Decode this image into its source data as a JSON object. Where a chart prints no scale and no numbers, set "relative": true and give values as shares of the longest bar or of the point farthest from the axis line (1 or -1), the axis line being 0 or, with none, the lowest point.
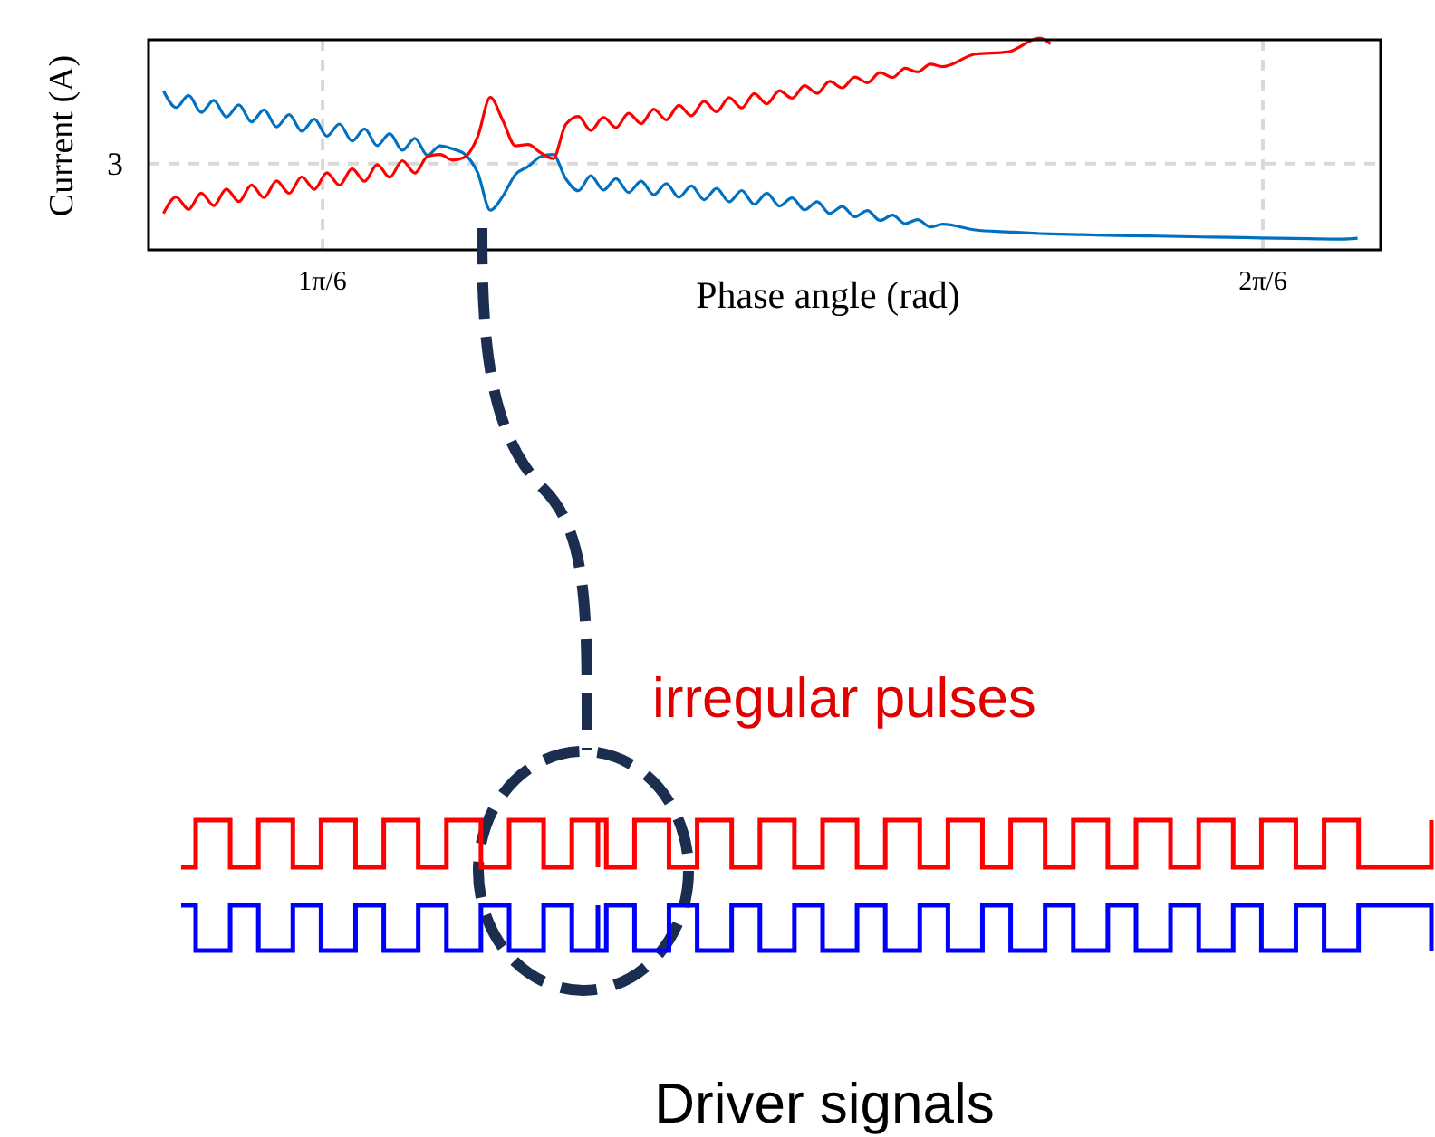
{
  "chart_data": {
    "type": "line",
    "xlabel": "Phase angle (rad)",
    "ylabel": "Current (A)",
    "relative": true,
    "x": [
      0.435,
      0.442,
      0.449,
      0.456,
      0.463,
      0.47,
      0.477,
      0.484,
      0.491,
      0.498,
      0.505,
      0.512,
      0.519,
      0.526,
      0.533,
      0.54,
      0.547,
      0.554,
      0.561,
      0.568,
      0.575,
      0.582,
      0.589,
      0.596,
      0.603,
      0.61,
      0.617,
      0.624,
      0.631,
      0.638,
      0.645,
      0.652,
      0.659,
      0.666,
      0.673,
      0.68,
      0.687,
      0.694,
      0.701,
      0.708,
      0.715,
      0.722,
      0.729,
      0.736,
      0.743,
      0.75,
      0.757,
      0.764,
      0.771,
      0.778,
      0.785,
      0.792,
      0.799,
      0.806,
      0.813,
      0.82,
      0.827,
      0.834,
      0.841,
      0.848,
      0.855,
      0.862,
      0.869,
      0.887,
      0.905,
      0.923,
      0.929,
      0.947,
      0.965,
      0.983,
      1.001,
      1.019,
      1.037,
      1.055,
      1.073,
      1.091,
      1.1
    ],
    "series": [
      {
        "color": "#0070c0",
        "values": [
          0.751,
          0.672,
          0.729,
          0.649,
          0.706,
          0.627,
          0.684,
          0.604,
          0.661,
          0.581,
          0.638,
          0.56,
          0.617,
          0.537,
          0.594,
          0.514,
          0.571,
          0.492,
          0.549,
          0.47,
          0.526,
          0.447,
          0.491,
          0.477,
          0.45,
          0.364,
          0.187,
          0.254,
          0.356,
          0.393,
          0.44,
          0.45,
          0.336,
          0.279,
          0.35,
          0.282,
          0.336,
          0.271,
          0.324,
          0.26,
          0.313,
          0.248,
          0.302,
          0.237,
          0.29,
          0.227,
          0.28,
          0.215,
          0.268,
          0.207,
          0.245,
          0.189,
          0.227,
          0.172,
          0.205,
          0.156,
          0.185,
          0.139,
          0.164,
          0.124,
          0.143,
          0.108,
          0.121,
          0.094,
          0.085,
          0.077,
          0.075,
          0.072,
          0.068,
          0.066,
          0.063,
          0.06,
          0.058,
          0.055,
          0.053,
          0.051,
          0.055
        ]
      },
      {
        "color": "#ff0000",
        "values": [
          0.172,
          0.249,
          0.191,
          0.268,
          0.209,
          0.287,
          0.228,
          0.306,
          0.247,
          0.325,
          0.267,
          0.345,
          0.286,
          0.364,
          0.305,
          0.383,
          0.324,
          0.402,
          0.343,
          0.421,
          0.363,
          0.441,
          0.45,
          0.424,
          0.44,
          0.535,
          0.72,
          0.61,
          0.491,
          0.497,
          0.459,
          0.431,
          0.592,
          0.63,
          0.563,
          0.626,
          0.577,
          0.645,
          0.596,
          0.664,
          0.614,
          0.682,
          0.633,
          0.701,
          0.652,
          0.719,
          0.67,
          0.738,
          0.689,
          0.752,
          0.716,
          0.775,
          0.739,
          0.795,
          0.765,
          0.816,
          0.789,
          0.837,
          0.814,
          0.857,
          0.84,
          0.877,
          0.865,
          0.924,
          0.934,
          1,
          0.972,
          null,
          null,
          null,
          null,
          null,
          null,
          null,
          null,
          null,
          null
        ]
      }
    ],
    "xlim": [
      0.4267,
      1.1128
    ],
    "xticks": [
      {
        "value": 0.5236,
        "label": "1π/6"
      },
      {
        "value": 1.0472,
        "label": "2π/6"
      }
    ],
    "grid": "x",
    "ref_lines": [
      {
        "axis": "y",
        "value": 0.407,
        "color": "#d9d9d9",
        "line_style": "dashed"
      }
    ],
    "annotations": [
      "irregular pulses",
      "Driver signals",
      "3"
    ]
  }
}
